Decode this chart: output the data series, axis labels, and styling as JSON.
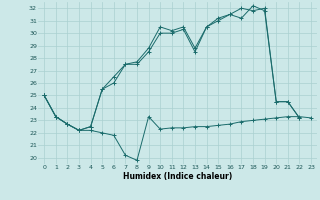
{
  "xlabel": "Humidex (Indice chaleur)",
  "background_color": "#cce8e8",
  "line_color": "#1a6b6b",
  "grid_color": "#aad0d0",
  "xlim": [
    -0.5,
    23.5
  ],
  "ylim": [
    19.5,
    32.5
  ],
  "xticks": [
    0,
    1,
    2,
    3,
    4,
    5,
    6,
    7,
    8,
    9,
    10,
    11,
    12,
    13,
    14,
    15,
    16,
    17,
    18,
    19,
    20,
    21,
    22,
    23
  ],
  "yticks": [
    20,
    21,
    22,
    23,
    24,
    25,
    26,
    27,
    28,
    29,
    30,
    31,
    32
  ],
  "line_bottom": [
    25.0,
    23.3,
    22.7,
    22.2,
    22.2,
    22.0,
    21.8,
    20.2,
    19.8,
    23.3,
    22.3,
    22.4,
    22.4,
    22.5,
    22.5,
    22.6,
    22.7,
    22.9,
    23.0,
    23.1,
    23.2,
    23.3,
    23.3,
    23.2
  ],
  "line_mid": [
    25.0,
    23.3,
    22.7,
    22.2,
    22.5,
    25.5,
    26.0,
    27.5,
    27.5,
    28.5,
    30.0,
    30.0,
    30.3,
    28.5,
    30.5,
    31.0,
    31.5,
    32.0,
    31.8,
    32.0,
    24.5,
    24.5,
    23.2,
    null
  ],
  "line_top": [
    25.0,
    23.3,
    22.7,
    22.2,
    22.5,
    25.5,
    26.5,
    27.5,
    27.7,
    28.8,
    30.5,
    30.2,
    30.5,
    28.8,
    30.5,
    31.2,
    31.5,
    31.2,
    32.2,
    31.8,
    24.5,
    24.5,
    23.2,
    null
  ]
}
